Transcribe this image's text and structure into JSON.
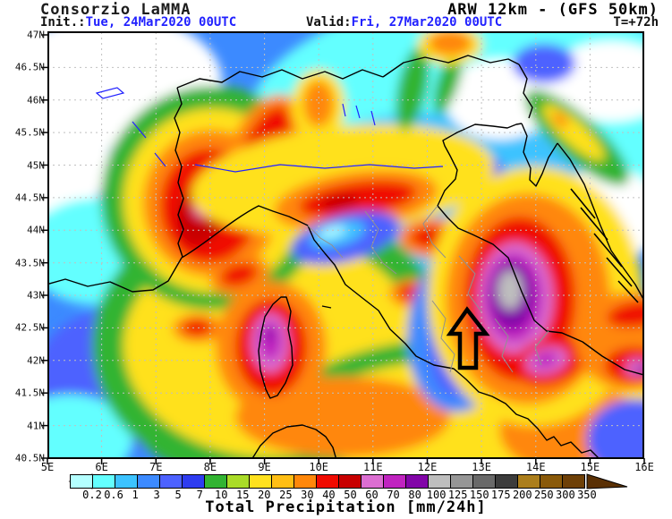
{
  "header": {
    "brand": "Consorzio LaMMA",
    "model": "ARW 12km - (GFS 50km)",
    "init_label": "Init.:",
    "init_value": "Tue, 24Mar2020 00UTC",
    "valid_label": "Valid:",
    "valid_value": "Fri, 27Mar2020 00UTC",
    "lead_time": "T=+72h",
    "date_color": "#2222ff"
  },
  "map": {
    "lat_labels": [
      "47N",
      "46.5N",
      "46N",
      "45.5N",
      "45N",
      "44.5N",
      "44N",
      "43.5N",
      "43N",
      "42.5N",
      "42N",
      "41.5N",
      "41N",
      "40.5N"
    ],
    "lon_labels": [
      "5E",
      "6E",
      "7E",
      "8E",
      "9E",
      "10E",
      "11E",
      "12E",
      "13E",
      "14E",
      "15E",
      "16E"
    ],
    "annotation": "hollow black arrow pointing up near 12.5E 42.5N"
  },
  "legend": {
    "caption": "Total Precipitation [mm/24h]",
    "boundaries": [
      "0.2",
      "0.6",
      "1",
      "3",
      "5",
      "7",
      "10",
      "15",
      "20",
      "25",
      "30",
      "40",
      "50",
      "60",
      "70",
      "80",
      "100",
      "125",
      "150",
      "175",
      "200",
      "250",
      "300",
      "350"
    ],
    "colors": [
      "#b4ffff",
      "#63ffff",
      "#3cc3ff",
      "#3c8aff",
      "#4d62ff",
      "#2e3cf0",
      "#32b432",
      "#aadc28",
      "#ffe11e",
      "#ffbe14",
      "#ff870a",
      "#f00a00",
      "#c80000",
      "#dc6ed2",
      "#c023c0",
      "#8205a8",
      "#bebebe",
      "#969696",
      "#696969",
      "#3c3c3c",
      "#ab7e1c",
      "#8a5a0a",
      "#6e4007"
    ],
    "start_pointer_color": "#ffffff",
    "tip_color": "#5a3004"
  }
}
